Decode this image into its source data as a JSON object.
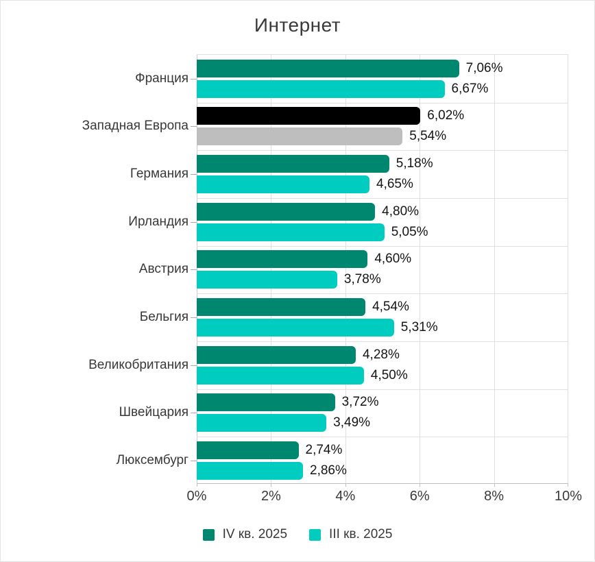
{
  "title": "Интернет",
  "chart_data": {
    "type": "bar",
    "orientation": "horizontal",
    "title": "Интернет",
    "xlabel": "",
    "ylabel": "",
    "xlim": [
      0,
      10
    ],
    "x_ticks": [
      "0%",
      "2%",
      "4%",
      "6%",
      "8%",
      "10%"
    ],
    "x_tick_values": [
      0,
      2,
      4,
      6,
      8,
      10
    ],
    "grid": true,
    "legend_position": "bottom",
    "categories": [
      "Франция",
      "Западная Европа",
      "Германия",
      "Ирландия",
      "Австрия",
      "Бельгия",
      "Великобритания",
      "Швейцария",
      "Люксембург"
    ],
    "series": [
      {
        "name": "IV кв. 2025",
        "color": "#008770",
        "values": [
          7.06,
          6.02,
          5.18,
          4.8,
          4.6,
          4.54,
          4.28,
          3.72,
          2.74
        ],
        "labels": [
          "7,06%",
          "6,02%",
          "5,18%",
          "4,80%",
          "4,60%",
          "4,54%",
          "4,28%",
          "3,72%",
          "2,74%"
        ]
      },
      {
        "name": "III кв. 2025",
        "color": "#00CCC0",
        "values": [
          6.67,
          5.54,
          4.65,
          5.05,
          3.78,
          5.31,
          4.5,
          3.49,
          2.86
        ],
        "labels": [
          "6,67%",
          "5,54%",
          "4,65%",
          "5,05%",
          "3,78%",
          "5,31%",
          "4,50%",
          "3,49%",
          "2,86%"
        ]
      }
    ],
    "highlight_category": "Западная Европа",
    "highlight_colors": [
      "#000000",
      "#BEBEBE"
    ]
  },
  "colors": {
    "q4_bar": "#008770",
    "q3_bar": "#00CCC0",
    "highlight_q4_bar": "#000000",
    "highlight_q3_bar": "#BEBEBE",
    "gridline": "#e0e0e0",
    "axis_line": "#bfbfbf",
    "text": "#383838"
  },
  "legend": {
    "items": [
      {
        "label": "IV кв. 2025",
        "color": "#008770"
      },
      {
        "label": "III кв. 2025",
        "color": "#00CCC0"
      }
    ]
  }
}
